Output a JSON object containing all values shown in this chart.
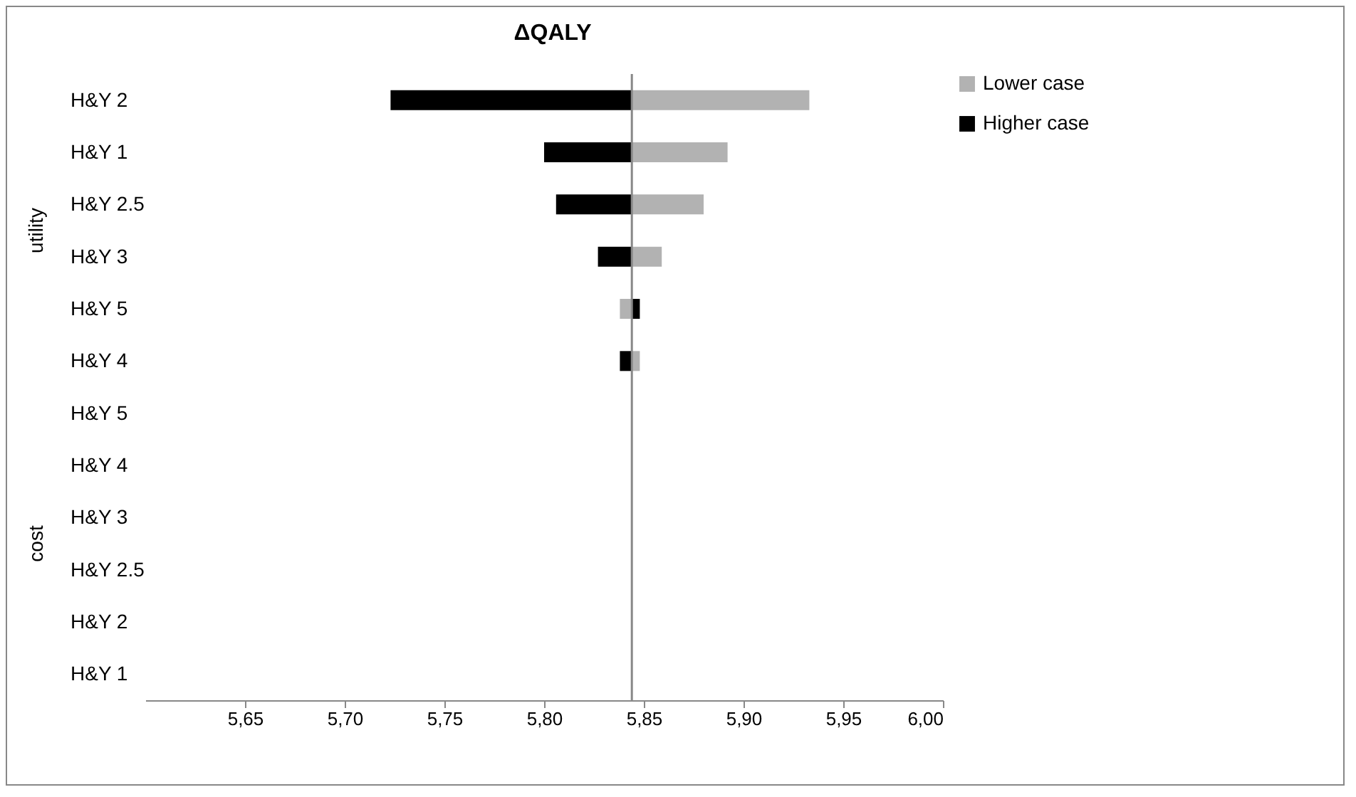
{
  "chart_data": {
    "type": "bar",
    "orientation": "horizontal",
    "title": "ΔQALY",
    "categories": [
      "H&Y 2",
      "H&Y 1",
      "H&Y 2.5",
      "H&Y 3",
      "H&Y 5",
      "H&Y 4",
      "H&Y 5",
      "H&Y 4",
      "H&Y 3",
      "H&Y 2.5",
      "H&Y 2",
      "H&Y 1"
    ],
    "annotations": [
      "utility",
      "cost"
    ],
    "series": [
      {
        "name": "Lower case",
        "color": "#b2b2b2",
        "values": [
          0.089,
          0.048,
          0.036,
          0.015,
          -0.006,
          0.004,
          null,
          null,
          null,
          null,
          null,
          null
        ],
        "base": [
          5.844,
          5.844,
          5.844,
          5.844,
          5.844,
          5.844,
          null,
          null,
          null,
          null,
          null,
          null
        ]
      },
      {
        "name": "Higher case",
        "color": "#000000",
        "values": [
          -0.121,
          -0.044,
          -0.038,
          -0.017,
          0.004,
          -0.006,
          null,
          null,
          null,
          null,
          null,
          null
        ],
        "base": [
          5.844,
          5.844,
          5.844,
          5.844,
          5.844,
          5.844,
          null,
          null,
          null,
          null,
          null,
          null
        ]
      }
    ],
    "xlim": [
      5.6,
      6.0
    ],
    "xticks": [
      {
        "value": 5.65,
        "label": "5,65"
      },
      {
        "value": 5.7,
        "label": "5,70"
      },
      {
        "value": 5.75,
        "label": "5,75"
      },
      {
        "value": 5.8,
        "label": "5,80"
      },
      {
        "value": 5.85,
        "label": "5,85"
      },
      {
        "value": 5.9,
        "label": "5,90"
      },
      {
        "value": 5.95,
        "label": "5,95"
      },
      {
        "value": 6.0,
        "label": "6,00"
      }
    ],
    "ref_lines": [
      {
        "axis": "x",
        "value": 5.844,
        "color": "#888888"
      }
    ],
    "legend": "right"
  }
}
